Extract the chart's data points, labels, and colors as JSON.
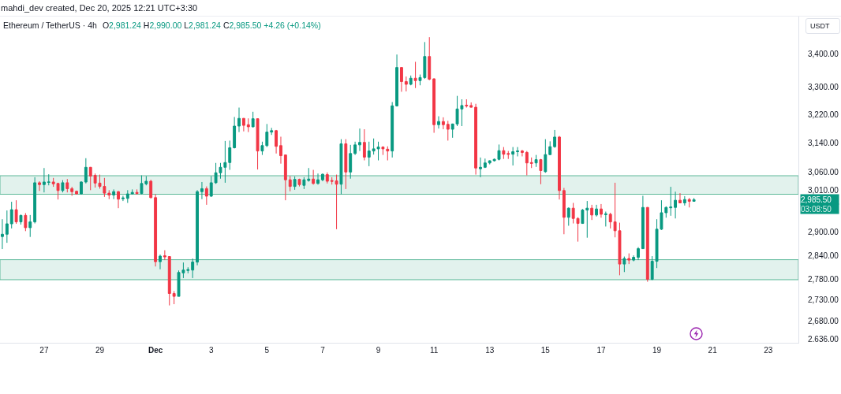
{
  "chart_data": {
    "type": "candlestick",
    "title": "Ethereum / TetherUS · 4h",
    "subtitle": "O2,981.24 H2,990.00 L2,981.24 C2,985.50 +4.26 (+0.14%)",
    "ylabel": "USDT",
    "annotations": [
      "mahdi_dev created, Dec 20, 2025 12:21 UTC+3:30",
      "2,985.50",
      "03:08:50"
    ],
    "x": [
      "2025-11-25T12:00",
      "2025-11-25T16:00",
      "2025-11-25T20:00",
      "2025-11-26T00:00",
      "2025-11-26T04:00",
      "2025-11-26T08:00",
      "2025-11-26T12:00",
      "2025-11-26T16:00",
      "2025-11-26T20:00",
      "2025-11-27T00:00",
      "2025-11-27T04:00",
      "2025-11-27T08:00",
      "2025-11-27T12:00",
      "2025-11-27T16:00",
      "2025-11-27T20:00",
      "2025-11-28T00:00",
      "2025-11-28T04:00",
      "2025-11-28T08:00",
      "2025-11-28T12:00",
      "2025-11-28T16:00",
      "2025-11-28T20:00",
      "2025-11-29T00:00",
      "2025-11-29T04:00",
      "2025-11-29T08:00",
      "2025-11-29T12:00",
      "2025-11-29T16:00",
      "2025-11-29T20:00",
      "2025-11-30T00:00",
      "2025-11-30T04:00",
      "2025-11-30T08:00",
      "2025-11-30T12:00",
      "2025-11-30T16:00",
      "2025-11-30T20:00",
      "2025-12-01T00:00",
      "2025-12-01T04:00",
      "2025-12-01T08:00",
      "2025-12-01T12:00",
      "2025-12-01T16:00",
      "2025-12-01T20:00",
      "2025-12-02T00:00",
      "2025-12-02T04:00",
      "2025-12-02T08:00",
      "2025-12-02T12:00",
      "2025-12-02T16:00",
      "2025-12-02T20:00",
      "2025-12-03T00:00",
      "2025-12-03T04:00",
      "2025-12-03T08:00",
      "2025-12-03T12:00",
      "2025-12-03T16:00",
      "2025-12-03T20:00",
      "2025-12-04T00:00",
      "2025-12-04T04:00",
      "2025-12-04T08:00",
      "2025-12-04T12:00",
      "2025-12-04T16:00",
      "2025-12-04T20:00",
      "2025-12-05T00:00",
      "2025-12-05T04:00",
      "2025-12-05T08:00",
      "2025-12-05T12:00",
      "2025-12-05T16:00",
      "2025-12-05T20:00",
      "2025-12-06T00:00",
      "2025-12-06T04:00",
      "2025-12-06T08:00",
      "2025-12-06T12:00",
      "2025-12-06T16:00",
      "2025-12-06T20:00",
      "2025-12-07T00:00",
      "2025-12-07T04:00",
      "2025-12-07T08:00",
      "2025-12-07T12:00",
      "2025-12-07T16:00",
      "2025-12-07T20:00",
      "2025-12-08T00:00",
      "2025-12-08T04:00",
      "2025-12-08T08:00",
      "2025-12-08T12:00",
      "2025-12-08T16:00",
      "2025-12-08T20:00",
      "2025-12-09T00:00",
      "2025-12-09T04:00",
      "2025-12-09T08:00",
      "2025-12-09T12:00",
      "2025-12-09T16:00",
      "2025-12-09T20:00",
      "2025-12-10T00:00",
      "2025-12-10T04:00",
      "2025-12-10T08:00",
      "2025-12-10T12:00",
      "2025-12-10T16:00",
      "2025-12-10T20:00",
      "2025-12-11T00:00",
      "2025-12-11T04:00",
      "2025-12-11T08:00",
      "2025-12-11T12:00",
      "2025-12-11T16:00",
      "2025-12-11T20:00",
      "2025-12-12T00:00",
      "2025-12-12T04:00",
      "2025-12-12T08:00",
      "2025-12-12T12:00",
      "2025-12-12T16:00",
      "2025-12-12T20:00",
      "2025-12-13T00:00",
      "2025-12-13T04:00",
      "2025-12-13T08:00",
      "2025-12-13T12:00",
      "2025-12-13T16:00",
      "2025-12-13T20:00",
      "2025-12-14T00:00",
      "2025-12-14T04:00",
      "2025-12-14T08:00",
      "2025-12-14T12:00",
      "2025-12-14T16:00",
      "2025-12-14T20:00",
      "2025-12-15T00:00",
      "2025-12-15T04:00",
      "2025-12-15T08:00",
      "2025-12-15T12:00",
      "2025-12-15T16:00",
      "2025-12-15T20:00",
      "2025-12-16T00:00",
      "2025-12-16T04:00",
      "2025-12-16T08:00",
      "2025-12-16T12:00",
      "2025-12-16T16:00",
      "2025-12-16T20:00",
      "2025-12-17T00:00",
      "2025-12-17T04:00",
      "2025-12-17T08:00",
      "2025-12-17T12:00",
      "2025-12-17T16:00",
      "2025-12-17T20:00",
      "2025-12-18T00:00",
      "2025-12-18T04:00",
      "2025-12-18T08:00",
      "2025-12-18T12:00",
      "2025-12-18T16:00",
      "2025-12-18T20:00",
      "2025-12-19T00:00",
      "2025-12-19T04:00",
      "2025-12-19T08:00",
      "2025-12-19T12:00",
      "2025-12-19T16:00",
      "2025-12-19T20:00",
      "2025-12-20T00:00",
      "2025-12-20T04:00",
      "2025-12-20T08:00"
    ],
    "ohlc": [
      [
        2889,
        2934,
        2857,
        2895
      ],
      [
        2895,
        2957,
        2873,
        2922
      ],
      [
        2922,
        2980,
        2910,
        2959
      ],
      [
        2959,
        2984,
        2922,
        2927
      ],
      [
        2927,
        2946,
        2920,
        2944
      ],
      [
        2944,
        2950,
        2903,
        2912
      ],
      [
        2912,
        2945,
        2888,
        2927
      ],
      [
        2927,
        3046,
        2923,
        3031
      ],
      [
        3031,
        3035,
        3009,
        3026
      ],
      [
        3026,
        3071,
        3005,
        3033
      ],
      [
        3032,
        3054,
        3024,
        3033
      ],
      [
        3033,
        3044,
        3020,
        3028
      ],
      [
        3029,
        3031,
        2986,
        3010
      ],
      [
        3010,
        3038,
        3005,
        3031
      ],
      [
        3031,
        3041,
        3005,
        3015
      ],
      [
        3015,
        3020,
        2996,
        3007
      ],
      [
        3008,
        3010,
        2999,
        3001
      ],
      [
        3001,
        3035,
        2999,
        3033
      ],
      [
        3033,
        3098,
        3029,
        3073
      ],
      [
        3073,
        3074,
        3011,
        3049
      ],
      [
        3051,
        3056,
        3018,
        3030
      ],
      [
        3030,
        3053,
        3015,
        3021
      ],
      [
        3021,
        3044,
        2993,
        3003
      ],
      [
        3003,
        3011,
        2987,
        2998
      ],
      [
        2998,
        3013,
        2987,
        3007
      ],
      [
        3007,
        3009,
        2963,
        2987
      ],
      [
        2988,
        2996,
        2982,
        2990
      ],
      [
        2989,
        3011,
        2977,
        3001
      ],
      [
        3001,
        3013,
        3000,
        3005
      ],
      [
        3005,
        3013,
        2999,
        3002
      ],
      [
        3002,
        3051,
        3000,
        3029
      ],
      [
        3028,
        3049,
        3024,
        3035
      ],
      [
        3035,
        3039,
        2989,
        2991
      ],
      [
        2991,
        3000,
        2813,
        2825
      ],
      [
        2825,
        2843,
        2806,
        2839
      ],
      [
        2840,
        2854,
        2829,
        2837
      ],
      [
        2838,
        2839,
        2717,
        2746
      ],
      [
        2746,
        2752,
        2720,
        2739
      ],
      [
        2739,
        2803,
        2739,
        2798
      ],
      [
        2797,
        2823,
        2784,
        2804
      ],
      [
        2803,
        2811,
        2796,
        2805
      ],
      [
        2804,
        2833,
        2784,
        2824
      ],
      [
        2824,
        3011,
        2816,
        3007
      ],
      [
        3007,
        3033,
        2987,
        3015
      ],
      [
        3015,
        3021,
        2972,
        2995
      ],
      [
        2995,
        3049,
        2993,
        3031
      ],
      [
        3031,
        3085,
        3028,
        3058
      ],
      [
        3058,
        3085,
        3042,
        3073
      ],
      [
        3073,
        3146,
        3031,
        3086
      ],
      [
        3086,
        3147,
        3066,
        3127
      ],
      [
        3127,
        3214,
        3125,
        3188
      ],
      [
        3188,
        3241,
        3171,
        3210
      ],
      [
        3210,
        3211,
        3173,
        3190
      ],
      [
        3192,
        3210,
        3171,
        3186
      ],
      [
        3186,
        3229,
        3184,
        3209
      ],
      [
        3209,
        3210,
        3067,
        3118
      ],
      [
        3118,
        3144,
        3107,
        3133
      ],
      [
        3133,
        3194,
        3129,
        3171
      ],
      [
        3171,
        3183,
        3163,
        3175
      ],
      [
        3175,
        3177,
        3111,
        3131
      ],
      [
        3133,
        3158,
        3083,
        3105
      ],
      [
        3107,
        3108,
        2984,
        3039
      ],
      [
        3039,
        3049,
        3008,
        3021
      ],
      [
        3021,
        3048,
        3012,
        3040
      ],
      [
        3040,
        3042,
        3021,
        3026
      ],
      [
        3024,
        3046,
        3014,
        3039
      ],
      [
        3037,
        3071,
        3034,
        3041
      ],
      [
        3041,
        3066,
        3026,
        3029
      ],
      [
        3029,
        3056,
        3026,
        3039
      ],
      [
        3039,
        3056,
        3035,
        3054
      ],
      [
        3053,
        3059,
        3029,
        3035
      ],
      [
        3037,
        3046,
        3026,
        3035
      ],
      [
        3036,
        3053,
        2908,
        3027
      ],
      [
        3027,
        3151,
        3000,
        3138
      ],
      [
        3138,
        3151,
        3014,
        3060
      ],
      [
        3060,
        3135,
        3042,
        3111
      ],
      [
        3111,
        3144,
        3107,
        3135
      ],
      [
        3135,
        3181,
        3118,
        3142
      ],
      [
        3142,
        3179,
        3092,
        3101
      ],
      [
        3101,
        3144,
        3076,
        3118
      ],
      [
        3118,
        3153,
        3108,
        3124
      ],
      [
        3124,
        3144,
        3092,
        3129
      ],
      [
        3129,
        3131,
        3107,
        3124
      ],
      [
        3123,
        3131,
        3092,
        3118
      ],
      [
        3118,
        3257,
        3100,
        3246
      ],
      [
        3246,
        3398,
        3244,
        3359
      ],
      [
        3359,
        3360,
        3287,
        3317
      ],
      [
        3317,
        3332,
        3288,
        3309
      ],
      [
        3309,
        3335,
        3306,
        3327
      ],
      [
        3327,
        3376,
        3298,
        3320
      ],
      [
        3320,
        3338,
        3306,
        3329
      ],
      [
        3329,
        3436,
        3325,
        3392
      ],
      [
        3392,
        3451,
        3321,
        3324
      ],
      [
        3325,
        3327,
        3169,
        3192
      ],
      [
        3192,
        3216,
        3181,
        3201
      ],
      [
        3201,
        3213,
        3179,
        3192
      ],
      [
        3193,
        3203,
        3147,
        3179
      ],
      [
        3179,
        3195,
        3155,
        3194
      ],
      [
        3194,
        3275,
        3188,
        3237
      ],
      [
        3237,
        3265,
        3188,
        3247
      ],
      [
        3248,
        3265,
        3241,
        3246
      ],
      [
        3247,
        3256,
        3241,
        3242
      ],
      [
        3242,
        3252,
        3053,
        3071
      ],
      [
        3069,
        3100,
        3046,
        3073
      ],
      [
        3073,
        3097,
        3071,
        3085
      ],
      [
        3085,
        3092,
        3081,
        3091
      ],
      [
        3091,
        3097,
        3089,
        3095
      ],
      [
        3095,
        3136,
        3092,
        3119
      ],
      [
        3119,
        3129,
        3096,
        3109
      ],
      [
        3111,
        3118,
        3096,
        3109
      ],
      [
        3109,
        3129,
        3078,
        3116
      ],
      [
        3116,
        3129,
        3103,
        3118
      ],
      [
        3118,
        3121,
        3103,
        3114
      ],
      [
        3114,
        3118,
        3051,
        3085
      ],
      [
        3086,
        3100,
        3071,
        3084
      ],
      [
        3085,
        3107,
        3074,
        3094
      ],
      [
        3094,
        3096,
        3027,
        3064
      ],
      [
        3061,
        3151,
        3058,
        3108
      ],
      [
        3108,
        3145,
        3107,
        3130
      ],
      [
        3130,
        3177,
        3127,
        3157
      ],
      [
        3157,
        3160,
        2986,
        3010
      ],
      [
        3010,
        3017,
        2895,
        2939
      ],
      [
        2939,
        2965,
        2917,
        2963
      ],
      [
        2963,
        2977,
        2923,
        2936
      ],
      [
        2936,
        2939,
        2876,
        2923
      ],
      [
        2923,
        2961,
        2922,
        2958
      ],
      [
        2958,
        2982,
        2886,
        2963
      ],
      [
        2963,
        2972,
        2932,
        2945
      ],
      [
        2945,
        2972,
        2941,
        2961
      ],
      [
        2961,
        2974,
        2938,
        2947
      ],
      [
        2946,
        2954,
        2915,
        2948
      ],
      [
        2947,
        2951,
        2910,
        2927
      ],
      [
        2927,
        3031,
        2887,
        2904
      ],
      [
        2904,
        2925,
        2791,
        2819
      ],
      [
        2819,
        2838,
        2799,
        2833
      ],
      [
        2833,
        2846,
        2819,
        2829
      ],
      [
        2829,
        2841,
        2826,
        2836
      ],
      [
        2836,
        2862,
        2829,
        2858
      ],
      [
        2858,
        2996,
        2857,
        2965
      ],
      [
        2965,
        2966,
        2775,
        2781
      ],
      [
        2781,
        2839,
        2779,
        2826
      ],
      [
        2826,
        2934,
        2809,
        2908
      ],
      [
        2908,
        2984,
        2906,
        2951
      ],
      [
        2951,
        2968,
        2938,
        2965
      ],
      [
        2964,
        3020,
        2943,
        2966
      ],
      [
        2965,
        3007,
        2936,
        2984
      ],
      [
        2984,
        3003,
        2976,
        2977
      ],
      [
        2977,
        2995,
        2970,
        2986
      ],
      [
        2986,
        2990,
        2965,
        2981.24
      ],
      [
        2981.24,
        2990.0,
        2981.24,
        2985.5
      ]
    ],
    "colors": [
      "#089981",
      "#089981",
      "#089981",
      "#f23645",
      "#089981",
      "#f23645",
      "#089981",
      "#089981",
      "#f23645",
      "#089981",
      "#089981",
      "#f23645",
      "#f23645",
      "#089981",
      "#f23645",
      "#f23645",
      "#f23645",
      "#089981",
      "#089981",
      "#f23645",
      "#f23645",
      "#f23645",
      "#f23645",
      "#f23645",
      "#089981",
      "#f23645",
      "#089981",
      "#089981",
      "#089981",
      "#f23645",
      "#089981",
      "#089981",
      "#f23645",
      "#f23645",
      "#089981",
      "#f23645",
      "#f23645",
      "#f23645",
      "#089981",
      "#089981",
      "#089981",
      "#089981",
      "#089981",
      "#089981",
      "#f23645",
      "#089981",
      "#089981",
      "#089981",
      "#089981",
      "#089981",
      "#089981",
      "#089981",
      "#f23645",
      "#f23645",
      "#089981",
      "#f23645",
      "#089981",
      "#089981",
      "#089981",
      "#f23645",
      "#f23645",
      "#f23645",
      "#f23645",
      "#089981",
      "#f23645",
      "#089981",
      "#089981",
      "#f23645",
      "#089981",
      "#089981",
      "#f23645",
      "#f23645",
      "#f23645",
      "#089981",
      "#f23645",
      "#089981",
      "#089981",
      "#089981",
      "#f23645",
      "#089981",
      "#089981",
      "#089981",
      "#f23645",
      "#f23645",
      "#089981",
      "#089981",
      "#f23645",
      "#f23645",
      "#089981",
      "#f23645",
      "#089981",
      "#089981",
      "#f23645",
      "#f23645",
      "#089981",
      "#f23645",
      "#f23645",
      "#089981",
      "#089981",
      "#089981",
      "#f23645",
      "#f23645",
      "#f23645",
      "#089981",
      "#089981",
      "#089981",
      "#089981",
      "#089981",
      "#f23645",
      "#f23645",
      "#089981",
      "#089981",
      "#f23645",
      "#f23645",
      "#f23645",
      "#089981",
      "#f23645",
      "#089981",
      "#089981",
      "#089981",
      "#f23645",
      "#f23645",
      "#089981",
      "#f23645",
      "#f23645",
      "#089981",
      "#089981",
      "#f23645",
      "#089981",
      "#f23645",
      "#089981",
      "#f23645",
      "#f23645",
      "#f23645",
      "#089981",
      "#f23645",
      "#089981",
      "#089981",
      "#089981",
      "#f23645",
      "#089981",
      "#089981",
      "#089981",
      "#089981",
      "#089981",
      "#089981",
      "#f23645",
      "#089981",
      "#f23645",
      "#089981"
    ],
    "xlim": [
      "2025-11-25T10:00",
      "2025-12-24T02:00"
    ],
    "xticks": [
      {
        "value": "2025-11-27",
        "label": "27"
      },
      {
        "value": "2025-11-29",
        "label": "29"
      },
      {
        "value": "2025-12-01",
        "label": "Dec"
      },
      {
        "value": "2025-12-03",
        "label": "3"
      },
      {
        "value": "2025-12-05",
        "label": "5"
      },
      {
        "value": "2025-12-07",
        "label": "7"
      },
      {
        "value": "2025-12-09",
        "label": "9"
      },
      {
        "value": "2025-12-11",
        "label": "11"
      },
      {
        "value": "2025-12-13",
        "label": "13"
      },
      {
        "value": "2025-12-15",
        "label": "15"
      },
      {
        "value": "2025-12-17",
        "label": "17"
      },
      {
        "value": "2025-12-19",
        "label": "19"
      },
      {
        "value": "2025-12-21",
        "label": "21"
      },
      {
        "value": "2025-12-23",
        "label": "23"
      }
    ],
    "ylim": [
      2628,
      3515
    ],
    "yticks": [
      {
        "value": 3400,
        "label": "3,400.00"
      },
      {
        "value": 3300,
        "label": "3,300.00"
      },
      {
        "value": 3220,
        "label": "3,220.00"
      },
      {
        "value": 3140,
        "label": "3,140.00"
      },
      {
        "value": 3060,
        "label": "3,060.00"
      },
      {
        "value": 3010,
        "label": "3,010.00"
      },
      {
        "value": 2900,
        "label": "2,900.00"
      },
      {
        "value": 2840,
        "label": "2,840.00"
      },
      {
        "value": 2780,
        "label": "2,780.00"
      },
      {
        "value": 2730,
        "label": "2,730.00"
      },
      {
        "value": 2680,
        "label": "2,680.00"
      },
      {
        "value": 2636,
        "label": "2.636.00"
      }
    ],
    "log": "y",
    "bands": [
      {
        "axis": "y",
        "from": 3000,
        "to": 3050,
        "color": "#5cb899"
      },
      {
        "axis": "y",
        "from": 2780,
        "to": 2830,
        "color": "#5cb899"
      }
    ]
  }
}
